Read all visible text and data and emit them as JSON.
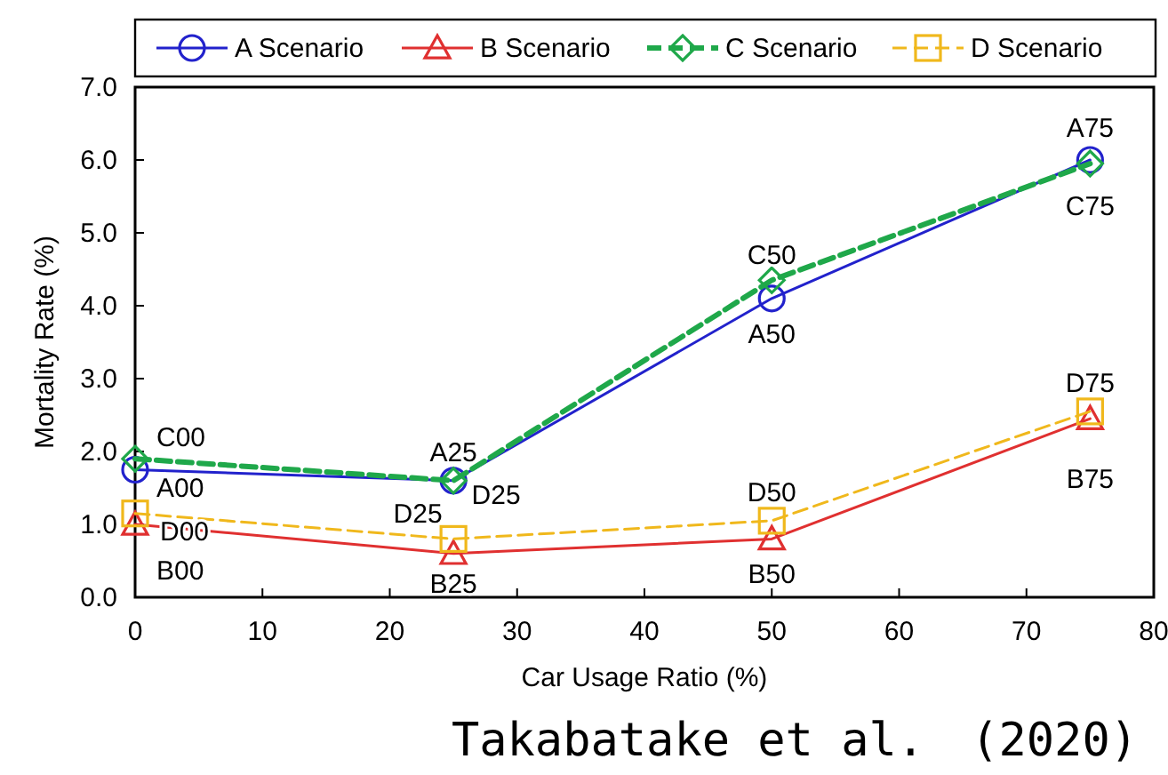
{
  "chart_data": {
    "type": "line",
    "xlabel": "Car Usage Ratio (%)",
    "ylabel": "Mortality Rate (%)",
    "x": [
      0,
      25,
      50,
      75
    ],
    "series": [
      {
        "name": "A Scenario",
        "color": "#2222cc",
        "values": [
          1.75,
          1.6,
          4.1,
          6.0
        ],
        "marker": "circle",
        "line_style": "solid"
      },
      {
        "name": "B Scenario",
        "color": "#e03030",
        "values": [
          1.0,
          0.6,
          0.8,
          2.45
        ],
        "marker": "triangle",
        "line_style": "solid"
      },
      {
        "name": "C Scenario",
        "color": "#1fa84a",
        "values": [
          1.9,
          1.6,
          4.35,
          5.95
        ],
        "marker": "diamond",
        "line_style": "dashed"
      },
      {
        "name": "D Scenario",
        "color": "#f0b81c",
        "values": [
          1.15,
          0.8,
          1.05,
          2.55
        ],
        "marker": "square",
        "line_style": "dashed"
      }
    ],
    "xlim": [
      0,
      80
    ],
    "xticks": [
      0,
      10,
      20,
      30,
      40,
      50,
      60,
      70,
      80
    ],
    "ylim": [
      0,
      7
    ],
    "yticks": [
      {
        "value": 0,
        "label": "0.0"
      },
      {
        "value": 1,
        "label": "1.0"
      },
      {
        "value": 2,
        "label": "2.0"
      },
      {
        "value": 3,
        "label": "3.0"
      },
      {
        "value": 4,
        "label": "4.0"
      },
      {
        "value": 5,
        "label": "5.0"
      },
      {
        "value": 6,
        "label": "6.0"
      },
      {
        "value": 7,
        "label": "7.0"
      }
    ],
    "grid": false,
    "legend": "top",
    "annotations": [
      {
        "text": "A00",
        "x": 0,
        "y": 1.75
      },
      {
        "text": "B00",
        "x": 0,
        "y": 1.0
      },
      {
        "text": "C00",
        "x": 0,
        "y": 1.9
      },
      {
        "text": "D00",
        "x": 0,
        "y": 1.15
      },
      {
        "text": "A25",
        "x": 25,
        "y": 1.6
      },
      {
        "text": "D25",
        "x": 25,
        "y": 1.6
      },
      {
        "text": "B25",
        "x": 25,
        "y": 0.6
      },
      {
        "text": "D25",
        "x": 25,
        "y": 0.8
      },
      {
        "text": "A50",
        "x": 50,
        "y": 4.1
      },
      {
        "text": "C50",
        "x": 50,
        "y": 4.35
      },
      {
        "text": "D50",
        "x": 50,
        "y": 1.05
      },
      {
        "text": "B50",
        "x": 50,
        "y": 0.8
      },
      {
        "text": "A75",
        "x": 75,
        "y": 6.0
      },
      {
        "text": "C75",
        "x": 75,
        "y": 5.95
      },
      {
        "text": "D75",
        "x": 75,
        "y": 2.55
      },
      {
        "text": "B75",
        "x": 75,
        "y": 2.45
      },
      "Takabatake et al.　(2020)"
    ]
  }
}
